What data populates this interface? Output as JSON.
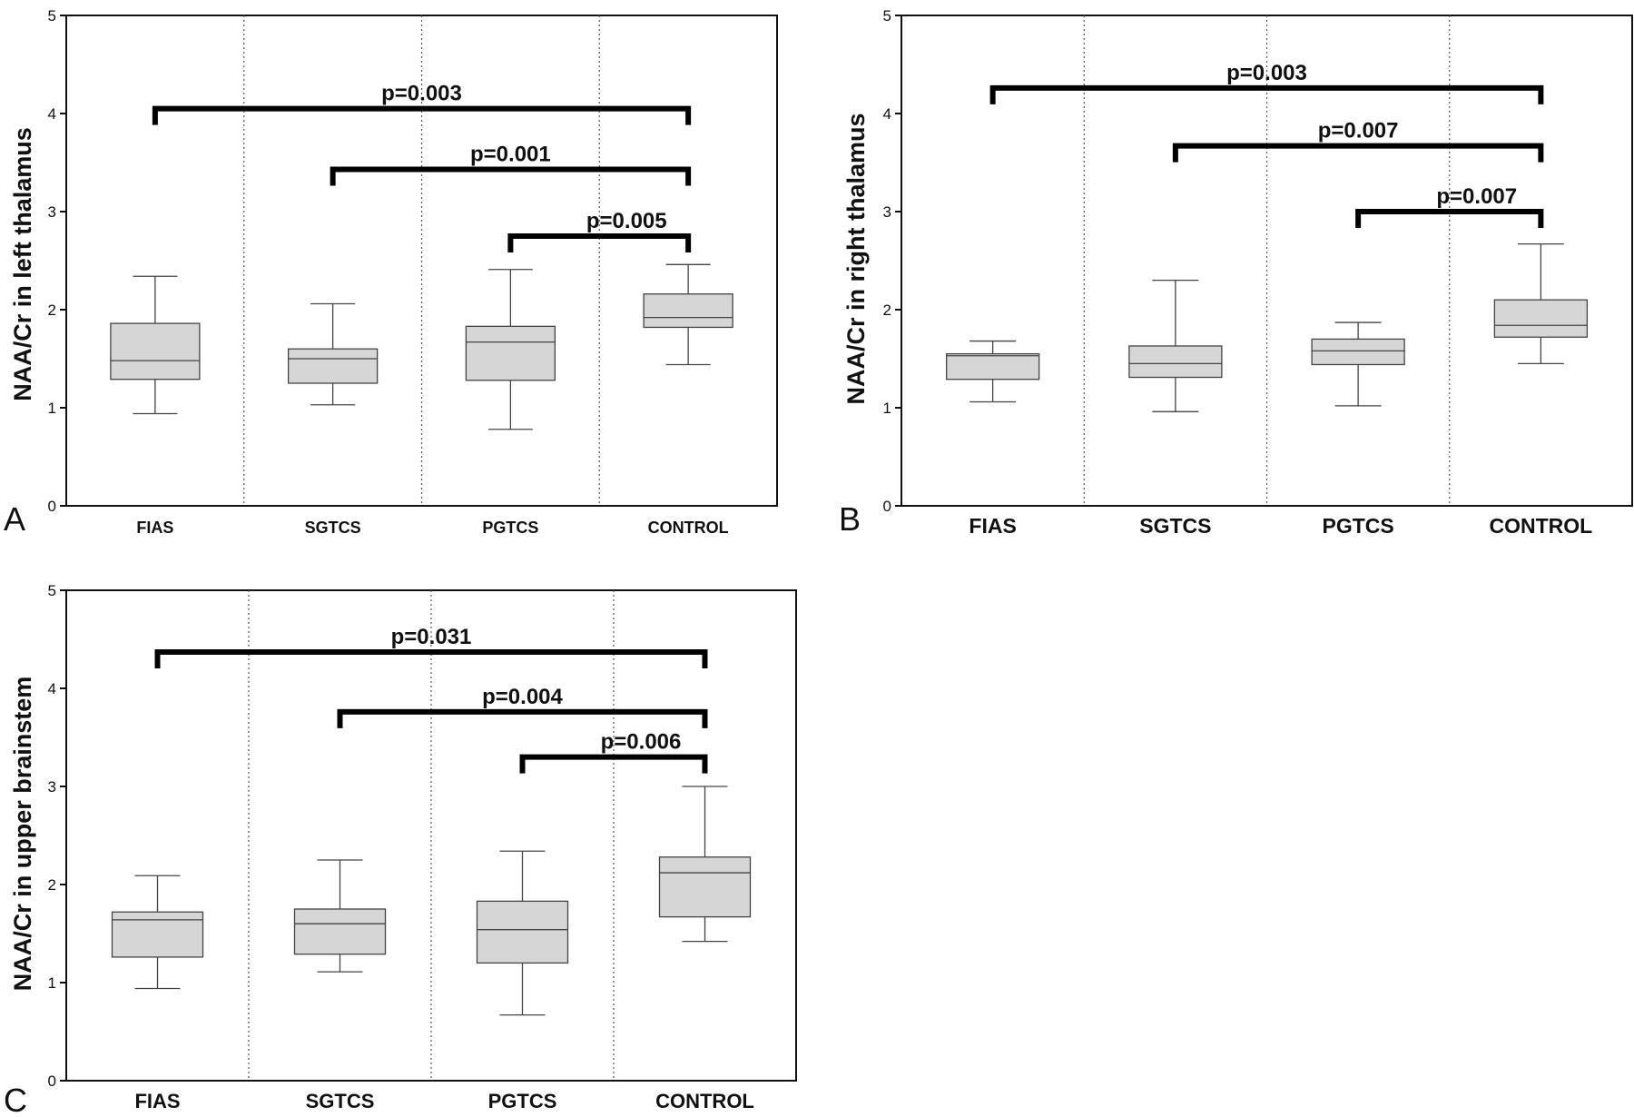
{
  "chart_data": [
    {
      "panel": "A",
      "type": "box",
      "ylabel": "NAA/Cr in left thalamus",
      "ylim": [
        0,
        5
      ],
      "yticks": [
        "0",
        "1",
        "2",
        "3",
        "4",
        "5"
      ],
      "categories": [
        "FIAS",
        "SGTCS",
        "PGTCS",
        "CONTROL"
      ],
      "boxes": [
        {
          "min": 0.94,
          "q1": 1.29,
          "median": 1.48,
          "q3": 1.86,
          "max": 2.34
        },
        {
          "min": 1.03,
          "q1": 1.25,
          "median": 1.5,
          "q3": 1.6,
          "max": 2.06
        },
        {
          "min": 0.78,
          "q1": 1.28,
          "median": 1.67,
          "q3": 1.83,
          "max": 2.41
        },
        {
          "min": 1.44,
          "q1": 1.82,
          "median": 1.92,
          "q3": 2.16,
          "max": 2.46
        }
      ],
      "comparisons": [
        {
          "from": 0,
          "to": 3,
          "y": 4.05,
          "label": "p=0.003"
        },
        {
          "from": 1,
          "to": 3,
          "y": 3.43,
          "label": "p=0.001"
        },
        {
          "from": 2,
          "to": 3,
          "y": 2.75,
          "label": "p=0.005"
        }
      ]
    },
    {
      "panel": "B",
      "type": "box",
      "ylabel": "NAA/Cr in right thalamus",
      "ylim": [
        0,
        5
      ],
      "yticks": [
        "0",
        "1",
        "2",
        "3",
        "4",
        "5"
      ],
      "categories": [
        "FIAS",
        "SGTCS",
        "PGTCS",
        "CONTROL"
      ],
      "boxes": [
        {
          "min": 1.06,
          "q1": 1.29,
          "median": 1.53,
          "q3": 1.55,
          "max": 1.68
        },
        {
          "min": 0.96,
          "q1": 1.31,
          "median": 1.45,
          "q3": 1.63,
          "max": 2.3
        },
        {
          "min": 1.02,
          "q1": 1.44,
          "median": 1.58,
          "q3": 1.7,
          "max": 1.87
        },
        {
          "min": 1.45,
          "q1": 1.72,
          "median": 1.84,
          "q3": 2.1,
          "max": 2.67
        }
      ],
      "comparisons": [
        {
          "from": 0,
          "to": 3,
          "y": 4.26,
          "label": "p=0.003"
        },
        {
          "from": 1,
          "to": 3,
          "y": 3.67,
          "label": "p=0.007"
        },
        {
          "from": 2,
          "to": 3,
          "y": 3.0,
          "label": "p=0.007"
        }
      ]
    },
    {
      "panel": "C",
      "type": "box",
      "ylabel": "NAA/Cr in upper brainstem",
      "ylim": [
        0,
        5
      ],
      "yticks": [
        "0",
        "1",
        "2",
        "3",
        "4",
        "5"
      ],
      "categories": [
        "FIAS",
        "SGTCS",
        "PGTCS",
        "CONTROL"
      ],
      "boxes": [
        {
          "min": 0.94,
          "q1": 1.26,
          "median": 1.64,
          "q3": 1.72,
          "max": 2.09
        },
        {
          "min": 1.11,
          "q1": 1.29,
          "median": 1.6,
          "q3": 1.75,
          "max": 2.25
        },
        {
          "min": 0.67,
          "q1": 1.2,
          "median": 1.54,
          "q3": 1.83,
          "max": 2.34
        },
        {
          "min": 1.42,
          "q1": 1.67,
          "median": 2.12,
          "q3": 2.28,
          "max": 3.0
        }
      ],
      "comparisons": [
        {
          "from": 0,
          "to": 3,
          "y": 4.37,
          "label": "p=0.031"
        },
        {
          "from": 1,
          "to": 3,
          "y": 3.76,
          "label": "p=0.004"
        },
        {
          "from": 2,
          "to": 3,
          "y": 3.3,
          "label": "p=0.006"
        }
      ]
    }
  ]
}
